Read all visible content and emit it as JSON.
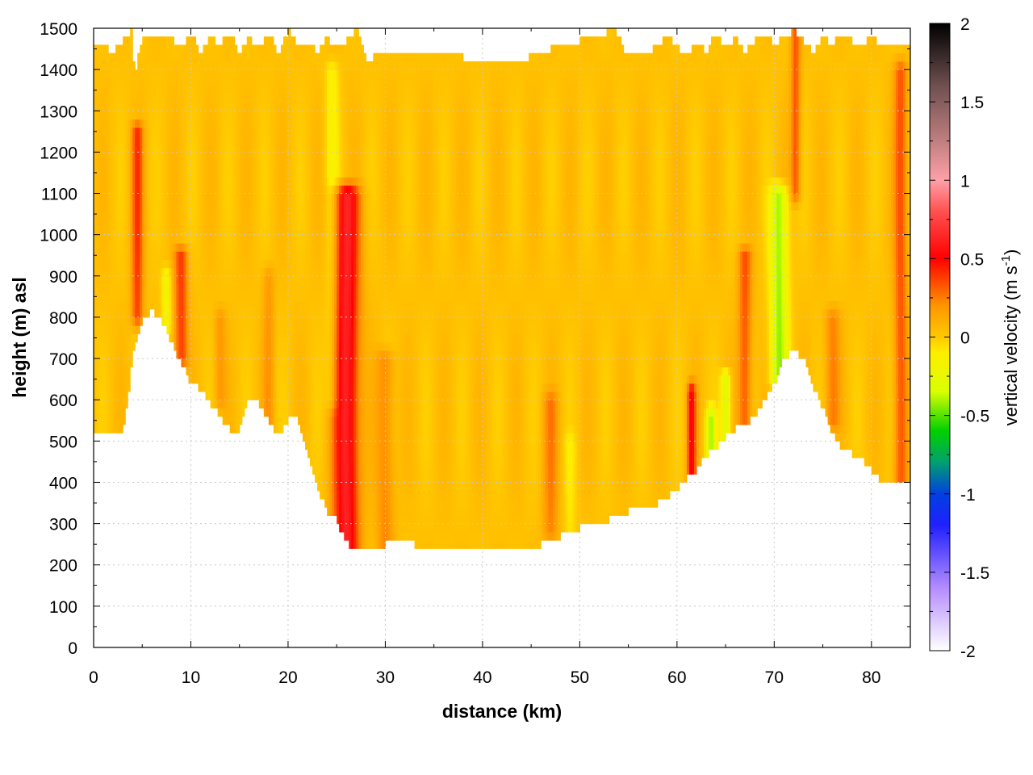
{
  "chart_data": {
    "type": "heatmap",
    "xlabel": "distance (km)",
    "ylabel": "height (m) asl",
    "xlim": [
      0,
      84
    ],
    "ylim": [
      0,
      1500
    ],
    "x_ticks": [
      0,
      10,
      20,
      30,
      40,
      50,
      60,
      70,
      80
    ],
    "y_ticks": [
      0,
      100,
      200,
      300,
      400,
      500,
      600,
      700,
      800,
      900,
      1000,
      1100,
      1200,
      1300,
      1400,
      1500
    ],
    "grid": true,
    "colorbar": {
      "label_main": "vertical velocity (m s",
      "label_sup": "-1",
      "label_close": ")",
      "range": [
        -2,
        2
      ],
      "ticks": [
        2,
        1.5,
        1,
        0.5,
        0,
        -0.5,
        -1,
        -1.5,
        -2
      ],
      "tick_labels": [
        "2",
        "1.5",
        "1",
        "0.5",
        "0",
        "-0.5",
        "-1",
        "-1.5",
        "-2"
      ],
      "colormap": [
        {
          "v": -2.0,
          "color": "#ffffff"
        },
        {
          "v": -1.6,
          "color": "#b48cff"
        },
        {
          "v": -1.2,
          "color": "#2020ff"
        },
        {
          "v": -1.0,
          "color": "#0040e0"
        },
        {
          "v": -0.8,
          "color": "#00a070"
        },
        {
          "v": -0.6,
          "color": "#00d000"
        },
        {
          "v": -0.35,
          "color": "#d8ff00"
        },
        {
          "v": -0.1,
          "color": "#ffee00"
        },
        {
          "v": 0.0,
          "color": "#ffc800"
        },
        {
          "v": 0.2,
          "color": "#ff9600"
        },
        {
          "v": 0.5,
          "color": "#ff0000"
        },
        {
          "v": 0.8,
          "color": "#ff5050"
        },
        {
          "v": 1.0,
          "color": "#ffa0a8"
        },
        {
          "v": 1.3,
          "color": "#b47878"
        },
        {
          "v": 1.6,
          "color": "#705050"
        },
        {
          "v": 2.0,
          "color": "#000000"
        }
      ]
    },
    "terrain": {
      "x": [
        0,
        1,
        2,
        2.5,
        3,
        3.5,
        4,
        5,
        6,
        7,
        8,
        9,
        10,
        11,
        12,
        13,
        13.5,
        14,
        14.5,
        15,
        16,
        17,
        18,
        19,
        20,
        21,
        22,
        23,
        24,
        25,
        26,
        27,
        28,
        30,
        32,
        34,
        36,
        38,
        40,
        42,
        44,
        46,
        48,
        50,
        52,
        54,
        56,
        58,
        60,
        61,
        62,
        63,
        64,
        65,
        66,
        67,
        68,
        69,
        70,
        71,
        72,
        73,
        74,
        75,
        76,
        77,
        78,
        79,
        80,
        81,
        82,
        83,
        84
      ],
      "y": [
        515,
        530,
        525,
        515,
        530,
        600,
        700,
        800,
        815,
        790,
        740,
        690,
        640,
        625,
        590,
        560,
        540,
        530,
        525,
        530,
        600,
        590,
        550,
        510,
        555,
        550,
        480,
        390,
        330,
        310,
        255,
        235,
        240,
        250,
        255,
        245,
        240,
        240,
        240,
        235,
        240,
        250,
        270,
        290,
        300,
        320,
        340,
        350,
        380,
        410,
        430,
        465,
        480,
        510,
        530,
        540,
        560,
        600,
        640,
        700,
        725,
        700,
        630,
        580,
        520,
        480,
        470,
        460,
        430,
        400,
        395,
        400,
        400
      ]
    },
    "top_boundary": {
      "x": [
        0,
        1,
        2,
        3,
        4,
        4.2,
        5,
        6,
        7,
        8,
        9,
        10,
        11,
        12,
        13,
        14,
        15,
        16,
        17,
        18,
        19,
        20,
        21,
        22,
        23,
        24,
        25,
        26,
        27,
        28,
        30,
        32,
        34,
        36,
        38,
        40,
        42,
        44,
        46,
        48,
        50,
        52,
        53.5,
        55,
        57,
        59,
        60,
        61,
        62,
        63,
        64,
        65,
        66,
        67,
        68,
        69,
        70,
        71,
        72,
        73,
        74,
        75,
        76,
        77,
        78,
        79,
        80,
        81,
        82,
        83,
        84
      ],
      "y": [
        1450,
        1460,
        1440,
        1470,
        1495,
        1390,
        1480,
        1490,
        1470,
        1480,
        1450,
        1490,
        1440,
        1480,
        1460,
        1490,
        1440,
        1475,
        1450,
        1490,
        1440,
        1495,
        1460,
        1470,
        1440,
        1480,
        1450,
        1470,
        1500,
        1425,
        1440,
        1450,
        1445,
        1435,
        1430,
        1425,
        1420,
        1425,
        1440,
        1460,
        1470,
        1480,
        1500,
        1430,
        1440,
        1480,
        1460,
        1430,
        1470,
        1440,
        1490,
        1450,
        1480,
        1440,
        1470,
        1490,
        1460,
        1480,
        1495,
        1470,
        1440,
        1480,
        1460,
        1490,
        1470,
        1460,
        1480,
        1460,
        1450,
        1455,
        1460
      ]
    },
    "features": [
      {
        "x": 26.0,
        "sx": 1.3,
        "z0": 230,
        "z1": 1100,
        "value": 0.6
      },
      {
        "x": 24.5,
        "sx": 0.7,
        "z0": 600,
        "z1": 1400,
        "value": -0.15
      },
      {
        "x": 4.5,
        "sx": 0.6,
        "z0": 800,
        "z1": 1250,
        "value": 0.35
      },
      {
        "x": 9.0,
        "sx": 0.7,
        "z0": 700,
        "z1": 950,
        "value": 0.35
      },
      {
        "x": 7.5,
        "sx": 0.5,
        "z0": 780,
        "z1": 900,
        "value": -0.2
      },
      {
        "x": 13.0,
        "sx": 0.6,
        "z0": 600,
        "z1": 800,
        "value": 0.15
      },
      {
        "x": 18.0,
        "sx": 0.6,
        "z0": 550,
        "z1": 900,
        "value": 0.15
      },
      {
        "x": 30.0,
        "sx": 0.9,
        "z0": 250,
        "z1": 700,
        "value": 0.2
      },
      {
        "x": 49.0,
        "sx": 0.6,
        "z0": 280,
        "z1": 500,
        "value": -0.1
      },
      {
        "x": 47.0,
        "sx": 0.8,
        "z0": 280,
        "z1": 600,
        "value": 0.2
      },
      {
        "x": 61.5,
        "sx": 0.45,
        "z0": 400,
        "z1": 620,
        "value": 0.5
      },
      {
        "x": 63.5,
        "sx": 0.5,
        "z0": 450,
        "z1": 560,
        "value": -0.4
      },
      {
        "x": 65.0,
        "sx": 0.5,
        "z0": 500,
        "z1": 650,
        "value": -0.35
      },
      {
        "x": 67.0,
        "sx": 0.7,
        "z0": 550,
        "z1": 950,
        "value": 0.3
      },
      {
        "x": 70.5,
        "sx": 0.9,
        "z0": 650,
        "z1": 1100,
        "value": -0.45
      },
      {
        "x": 72.2,
        "sx": 0.5,
        "z0": 1100,
        "z1": 1500,
        "value": 0.3
      },
      {
        "x": 76.0,
        "sx": 0.8,
        "z0": 550,
        "z1": 800,
        "value": 0.2
      },
      {
        "x": 83.0,
        "sx": 0.7,
        "z0": 400,
        "z1": 1400,
        "value": 0.3
      }
    ]
  }
}
